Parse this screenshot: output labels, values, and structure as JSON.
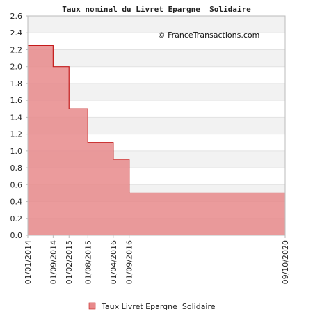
{
  "chart_data": {
    "type": "area",
    "title": "Taux nominal du Livret Epargne  Solidaire",
    "credit": "© FranceTransactions.com",
    "step": true,
    "x": [
      "01/01/2014",
      "01/09/2014",
      "01/02/2015",
      "01/08/2015",
      "01/04/2016",
      "01/09/2016",
      "09/10/2020"
    ],
    "series": [
      {
        "name": "Taux Livret Epargne  Solidaire",
        "values": [
          2.25,
          2.0,
          1.5,
          1.1,
          0.9,
          0.5,
          0.5
        ]
      }
    ],
    "ylim": [
      0,
      2.6
    ],
    "yticks": [
      "0.0",
      "0.2",
      "0.4",
      "0.6",
      "0.8",
      "1.0",
      "1.2",
      "1.4",
      "1.6",
      "1.8",
      "2.0",
      "2.2",
      "2.4",
      "2.6"
    ],
    "grid": true,
    "legend": "bottom-center",
    "colors": {
      "fill": "#e8898b",
      "line": "#c41a1a",
      "band_light": "#f2f2f2",
      "band_white": "#ffffff",
      "axis": "#bbbbbb",
      "legend_swatch": "#e8898b"
    }
  }
}
